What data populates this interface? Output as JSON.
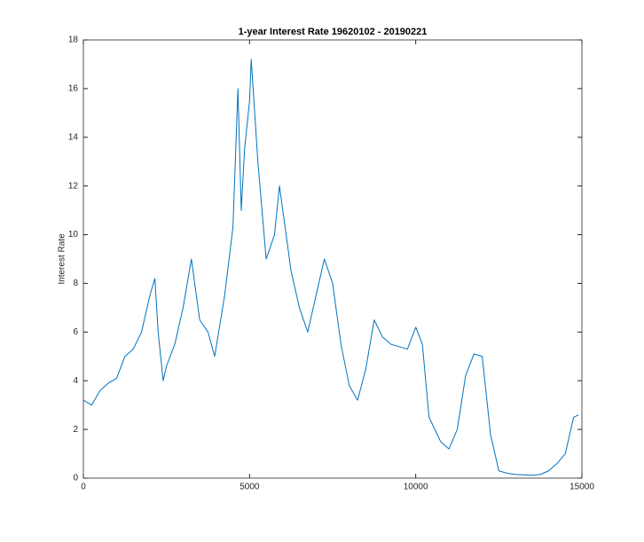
{
  "chart_data": {
    "type": "line",
    "title": "1-year Interest Rate 19620102 - 20190221",
    "y_label": "Interest Rate",
    "x": [
      0,
      250,
      500,
      750,
      1000,
      1250,
      1500,
      1750,
      2000,
      2150,
      2250,
      2400,
      2500,
      2750,
      3000,
      3250,
      3500,
      3750,
      3950,
      4250,
      4500,
      4650,
      4750,
      4850,
      5000,
      5050,
      5250,
      5500,
      5750,
      5900,
      6250,
      6500,
      6750,
      7000,
      7250,
      7500,
      7750,
      8000,
      8250,
      8500,
      8750,
      9000,
      9250,
      9500,
      9750,
      10000,
      10200,
      10400,
      10750,
      11000,
      11250,
      11500,
      11750,
      12000,
      12250,
      12500,
      12750,
      13000,
      13500,
      13750,
      14000,
      14250,
      14500,
      14750,
      14900
    ],
    "series": [
      {
        "name": "1-year Interest Rate",
        "color": "#0072bd",
        "values": [
          3.2,
          3.0,
          3.6,
          3.9,
          4.1,
          5.0,
          5.3,
          6.0,
          7.5,
          8.2,
          6.0,
          4.0,
          4.6,
          5.5,
          7.0,
          9.0,
          6.5,
          6.0,
          5.0,
          7.5,
          10.3,
          16.0,
          11.0,
          13.5,
          15.5,
          17.2,
          13.0,
          9.0,
          10.0,
          12.0,
          8.5,
          7.0,
          6.0,
          7.5,
          9.0,
          8.0,
          5.5,
          3.8,
          3.2,
          4.5,
          6.5,
          5.8,
          5.5,
          5.4,
          5.3,
          6.2,
          5.5,
          2.5,
          1.5,
          1.2,
          2.0,
          4.2,
          5.1,
          5.0,
          1.8,
          0.3,
          0.2,
          0.15,
          0.12,
          0.15,
          0.3,
          0.6,
          1.0,
          2.5,
          2.6
        ]
      }
    ],
    "xlim": [
      0,
      15000
    ],
    "xticks": [
      0,
      5000,
      10000,
      15000
    ],
    "ylim": [
      0,
      18
    ],
    "yticks": [
      0,
      2,
      4,
      6,
      8,
      10,
      12,
      14,
      16,
      18
    ]
  }
}
